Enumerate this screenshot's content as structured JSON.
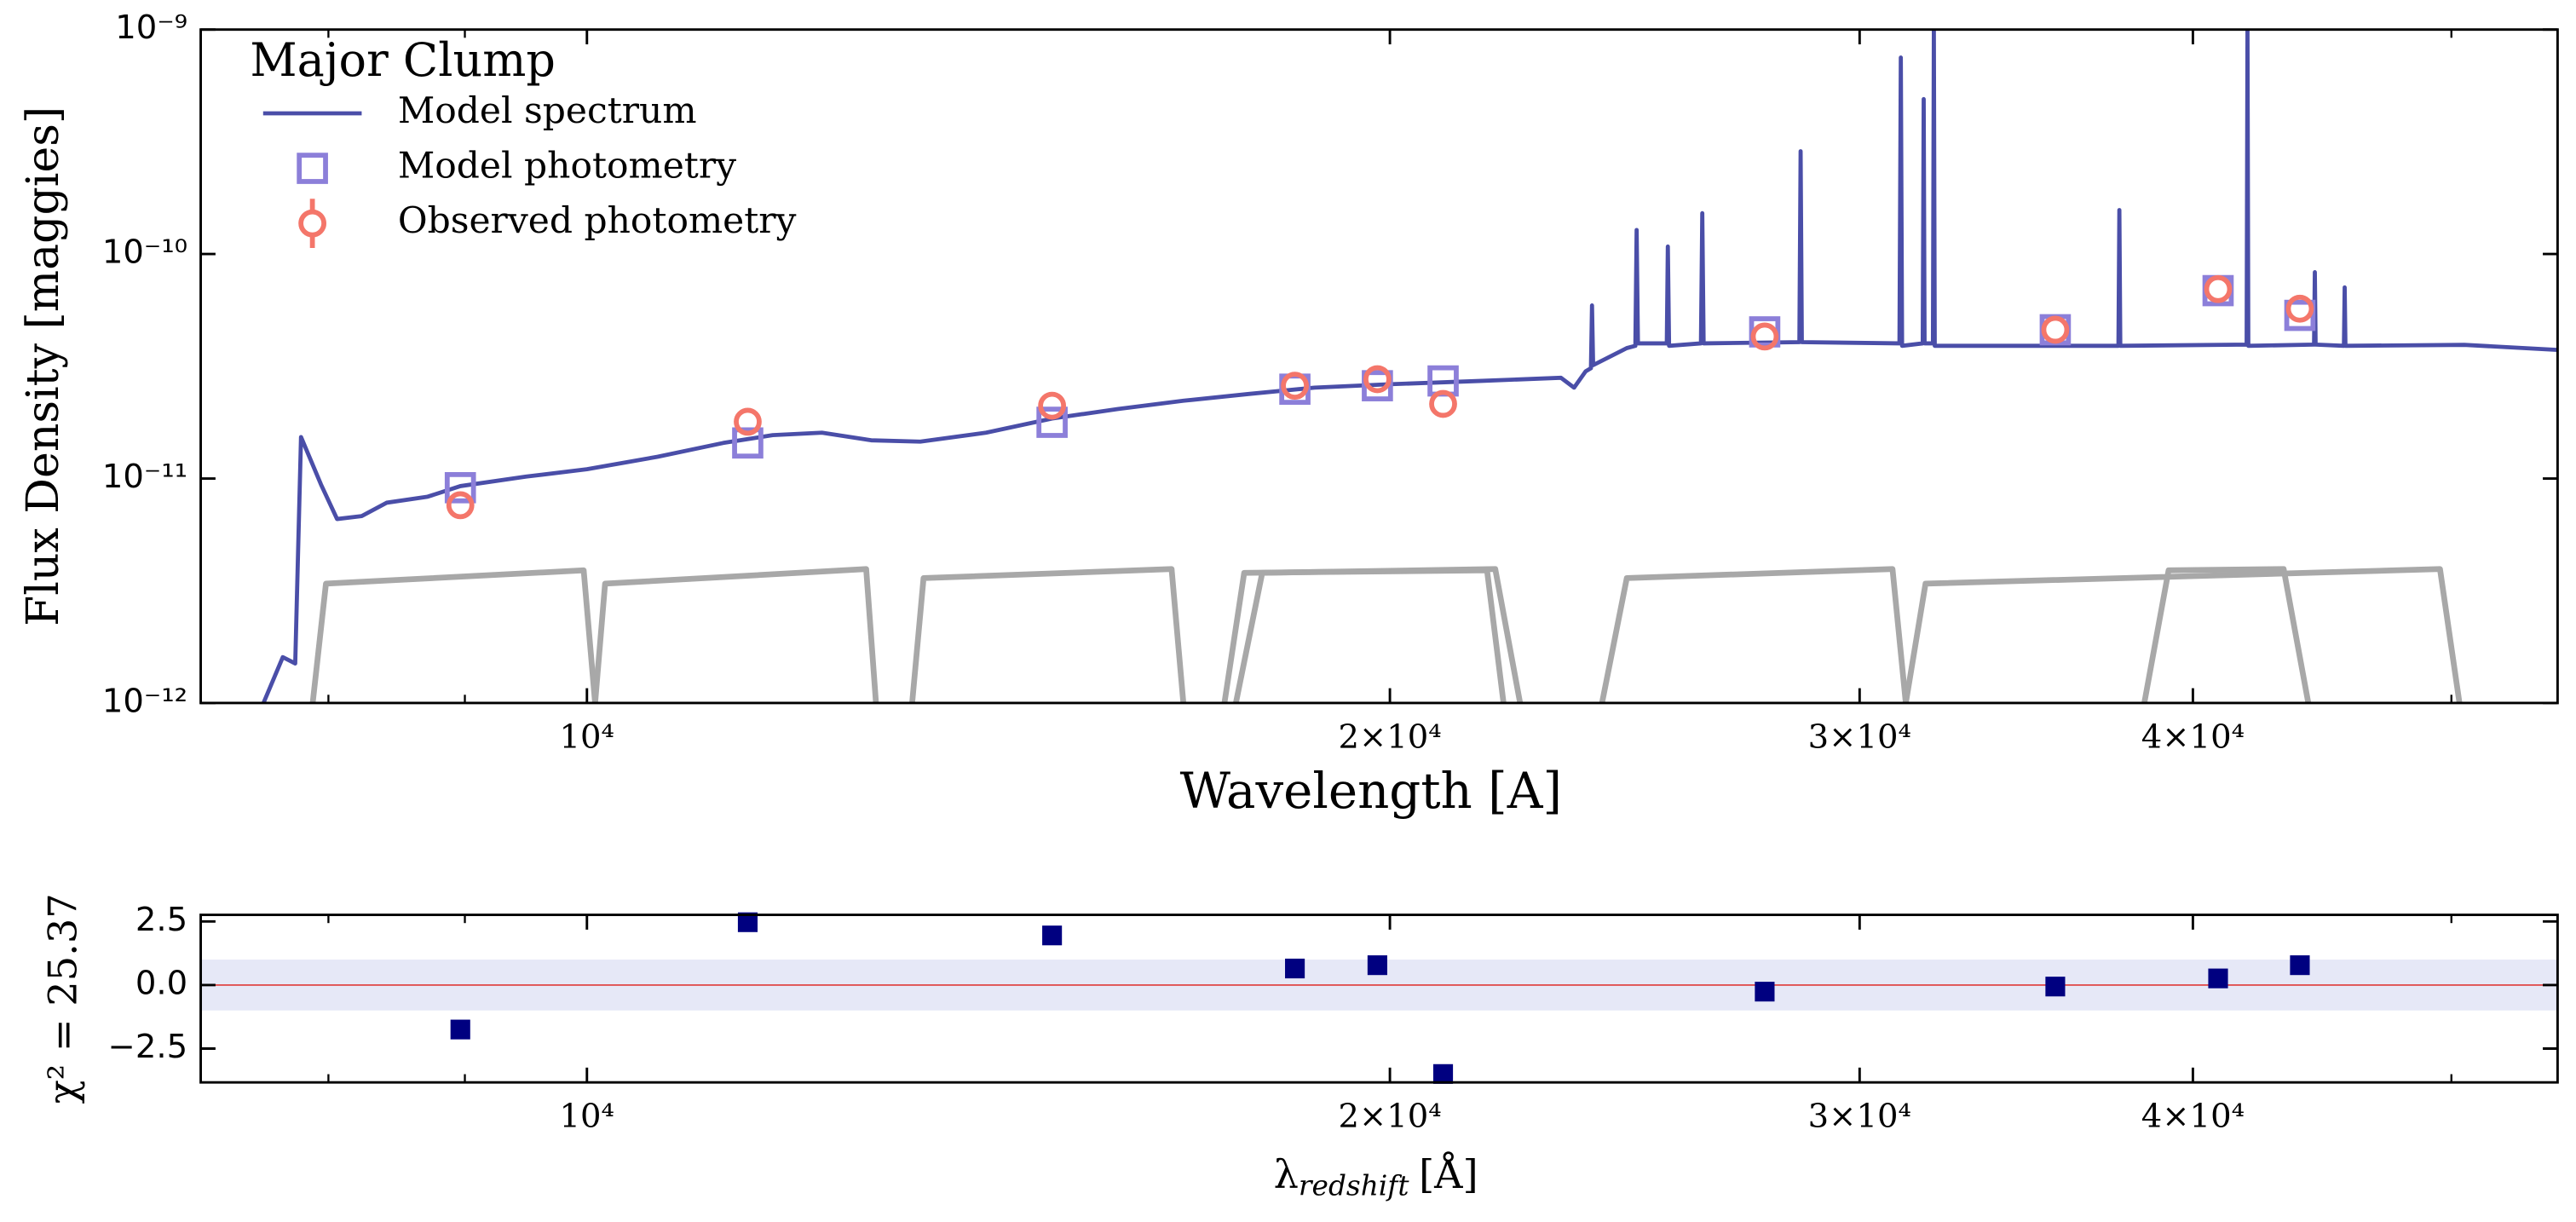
{
  "chart_data": [
    {
      "type": "line",
      "title": "Major Clump",
      "title_color": "#000080",
      "xlabel": "Wavelength [A]",
      "ylabel": "Flux Density [maggies]",
      "xscale": "log",
      "yscale": "log",
      "xlim": [
        7165,
        54800
      ],
      "ylim": [
        1e-12,
        1e-09
      ],
      "xticks": [
        {
          "value": 10000,
          "label": "10⁴"
        },
        {
          "value": 20000,
          "label": "2×10⁴"
        },
        {
          "value": 30000,
          "label": "3×10⁴"
        },
        {
          "value": 40000,
          "label": "4×10⁴"
        }
      ],
      "xminorticks": [
        8000,
        9000,
        50000
      ],
      "yticks": [
        {
          "value": 1e-12,
          "label": "10⁻¹²"
        },
        {
          "value": 1e-11,
          "label": "10⁻¹¹"
        },
        {
          "value": 1e-10,
          "label": "10⁻¹⁰"
        },
        {
          "value": 1e-09,
          "label": "10⁻⁹"
        }
      ],
      "series": [
        {
          "name": "Model spectrum",
          "type": "line",
          "color": "#4a4ea8",
          "x": [
            7564,
            7691,
            7774,
            7813,
            7949,
            8060,
            8233,
            8412,
            8716,
            8965,
            9489,
            10000,
            10629,
            11249,
            11739,
            12249,
            12781,
            13334,
            14113,
            14941,
            15812,
            16734,
            17706,
            18741,
            20000,
            21601,
            23182,
            23447,
            23680,
            23790,
            23812,
            23835,
            24537,
            24720,
            24747,
            24775,
            25400,
            25423,
            25450,
            26160,
            26190,
            26220,
            28480,
            28510,
            28540,
            31050,
            31086,
            31120,
            31680,
            31706,
            31730,
            31960,
            31985,
            32010,
            37510,
            37540,
            37570,
            41900,
            41930,
            41960,
            44410,
            44440,
            44470,
            45570,
            45600,
            45630,
            50560,
            54800
          ],
          "values": [
            1e-12,
            1.6e-12,
            1.5e-12,
            1.53e-11,
            9.4e-12,
            6.6e-12,
            6.8e-12,
            7.8e-12,
            8.3e-12,
            9.25e-12,
            1.02e-11,
            1.1e-11,
            1.25e-11,
            1.44e-11,
            1.56e-11,
            1.6e-11,
            1.48e-11,
            1.46e-11,
            1.6e-11,
            1.85e-11,
            2.04e-11,
            2.22e-11,
            2.38e-11,
            2.54e-11,
            2.63e-11,
            2.72e-11,
            2.81e-11,
            2.54e-11,
            3e-11,
            3.1e-11,
            5.9e-11,
            3.2e-11,
            3.81e-11,
            3.9e-11,
            1.28e-10,
            4e-11,
            4e-11,
            1.08e-10,
            3.9e-11,
            4e-11,
            1.52e-10,
            4e-11,
            4.05e-11,
            2.87e-10,
            4.05e-11,
            4e-11,
            7.5e-10,
            3.9e-11,
            4e-11,
            4.9e-10,
            4e-11,
            4e-11,
            1e-09,
            3.9e-11,
            3.9e-11,
            1.57e-10,
            3.9e-11,
            3.95e-11,
            1e-09,
            3.9e-11,
            3.95e-11,
            8.3e-11,
            3.95e-11,
            3.9e-11,
            7.1e-11,
            3.9e-11,
            3.94e-11,
            3.74e-11
          ]
        },
        {
          "name": "Model photometry",
          "type": "scatter",
          "marker": "square",
          "color": "#8c7fd9",
          "x": [
            8965,
            11489,
            14941,
            18425,
            19785,
            20940,
            27640,
            35520,
            40880,
            43870
          ],
          "values": [
            9.1e-12,
            1.44e-11,
            1.78e-11,
            2.5e-11,
            2.59e-11,
            2.72e-11,
            4.5e-11,
            4.6e-11,
            6.87e-11,
            5.33e-11
          ]
        },
        {
          "name": "Observed photometry",
          "type": "scatter",
          "marker": "circle",
          "color": "#f4766a",
          "x": [
            8965,
            11489,
            14941,
            18425,
            19785,
            20940,
            27640,
            35520,
            40880,
            43870
          ],
          "values": [
            7.6e-12,
            1.79e-11,
            2.11e-11,
            2.59e-11,
            2.77e-11,
            2.15e-11,
            4.29e-11,
            4.6e-11,
            6.98e-11,
            5.71e-11
          ]
        }
      ],
      "filter_color": "#a8a8a8",
      "filters": [
        {
          "x": [
            7892,
            7983,
            9972,
            10071
          ],
          "values": [
            1e-12,
            3.4e-12,
            3.9e-12,
            1e-12
          ]
        },
        {
          "x": [
            10071,
            10158,
            12726,
            12834
          ],
          "values": [
            1e-12,
            3.4e-12,
            3.95e-12,
            1e-12
          ]
        },
        {
          "x": [
            13241,
            13372,
            16565,
            16734
          ],
          "values": [
            1e-12,
            3.6e-12,
            3.95e-12,
            1e-12
          ]
        },
        {
          "x": [
            17338,
            17636,
            21749,
            22061
          ],
          "values": [
            1e-12,
            3.8e-12,
            3.9e-12,
            1e-12
          ]
        },
        {
          "x": [
            17510,
            17913,
            21904,
            22379
          ],
          "values": [
            1e-12,
            3.8e-12,
            3.95e-12,
            1e-12
          ]
        },
        {
          "x": [
            24019,
            24538,
            30864,
            31220
          ],
          "values": [
            1e-12,
            3.6e-12,
            3.95e-12,
            1e-12
          ]
        },
        {
          "x": [
            31220,
            31756,
            49510,
            50350
          ],
          "values": [
            1e-12,
            3.4e-12,
            3.95e-12,
            1e-12
          ]
        },
        {
          "x": [
            38357,
            39170,
            43260,
            44190
          ],
          "values": [
            1e-12,
            3.9e-12,
            3.95e-12,
            1e-12
          ]
        }
      ]
    },
    {
      "type": "scatter",
      "xlabel": {
        "symbol": "λ",
        "subscript": "redshift",
        "unit": "[Å]"
      },
      "ylabel": "χ² = 25.37",
      "xscale": "log",
      "xlim": [
        7165,
        54800
      ],
      "ylim": [
        -3.83,
        2.76
      ],
      "xticks": [
        {
          "value": 10000,
          "label": "10⁴"
        },
        {
          "value": 20000,
          "label": "2×10⁴"
        },
        {
          "value": 30000,
          "label": "3×10⁴"
        },
        {
          "value": 40000,
          "label": "4×10⁴"
        }
      ],
      "xminorticks": [
        8000,
        9000,
        50000
      ],
      "yticks": [
        {
          "value": -2.5,
          "label": "−2.5"
        },
        {
          "value": 0,
          "label": "0.0"
        },
        2.5
      ],
      "band": [
        -1,
        1
      ],
      "band_color": "#e6e8f7",
      "hline": 0,
      "hline_color": "#e05050",
      "color": "#000080",
      "x": [
        8965,
        11489,
        14941,
        18425,
        19785,
        20940,
        27640,
        35520,
        40880,
        43870
      ],
      "values": [
        -1.75,
        2.47,
        1.95,
        0.65,
        0.78,
        -3.5,
        -0.26,
        -0.06,
        0.26,
        0.78
      ]
    }
  ]
}
